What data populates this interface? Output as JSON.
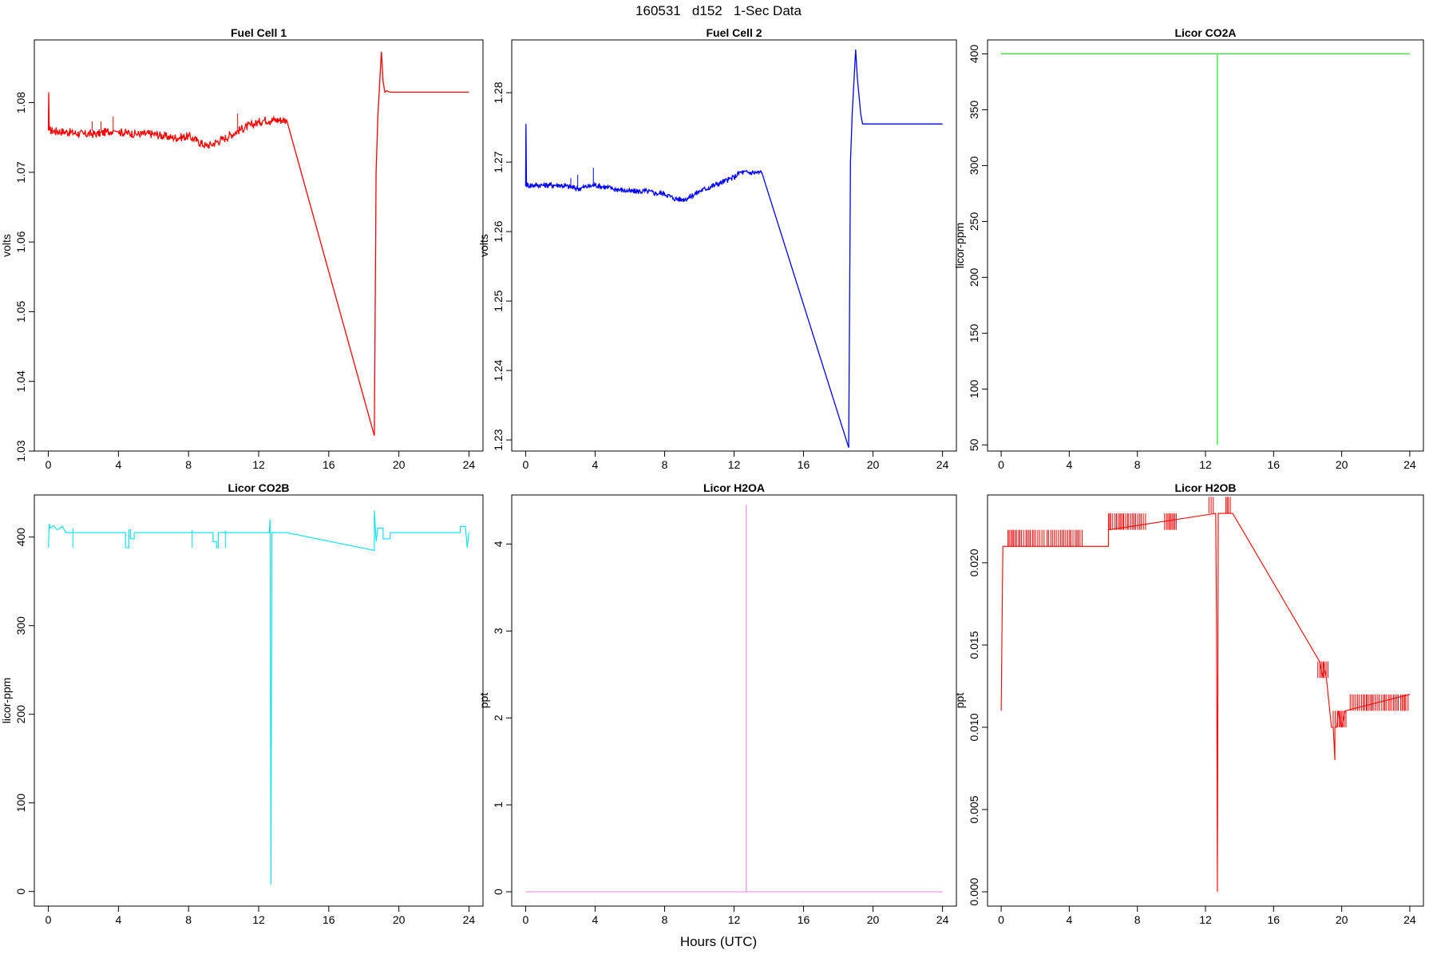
{
  "header": {
    "title": "160531   d152   1-Sec Data"
  },
  "x_axis_title": "Hours (UTC)",
  "chart_data": [
    {
      "type": "line",
      "title": "Fuel Cell 1",
      "ylabel": "volts",
      "color": "#ff0000",
      "xlim": [
        -0.8,
        24.8
      ],
      "ylim": [
        1.03,
        1.089
      ],
      "xticks": [
        0,
        4,
        8,
        12,
        16,
        20,
        24
      ],
      "yticks": [
        1.03,
        1.04,
        1.05,
        1.06,
        1.07,
        1.08
      ],
      "ytick_labels": [
        "1.03",
        "1.04",
        "1.05",
        "1.06",
        "1.07",
        "1.08"
      ],
      "noise": 0.0006,
      "x": [
        0,
        0.02,
        0.05,
        1,
        2,
        2.8,
        3.3,
        3.7,
        4,
        5,
        6,
        7,
        7.5,
        8,
        8.5,
        9,
        9.3,
        10,
        11,
        12,
        12.3,
        13.6,
        18.6,
        18.7,
        18.8,
        19.0,
        19.1,
        19.2,
        19.3,
        19.5,
        24
      ],
      "y": [
        1.076,
        1.0815,
        1.076,
        1.0758,
        1.0755,
        1.0755,
        1.0758,
        1.076,
        1.0758,
        1.0755,
        1.0755,
        1.075,
        1.075,
        1.0752,
        1.0745,
        1.0738,
        1.074,
        1.0748,
        1.0762,
        1.0772,
        1.0775,
        1.0775,
        1.0322,
        1.07,
        1.078,
        1.0873,
        1.083,
        1.0815,
        1.0817,
        1.0815,
        1.0815
      ],
      "spikes": [
        [
          2.5,
          1.0773
        ],
        [
          3.0,
          1.0773
        ],
        [
          3.7,
          1.078
        ],
        [
          10.8,
          1.0784
        ]
      ]
    },
    {
      "type": "line",
      "title": "Fuel Cell 2",
      "ylabel": "volts",
      "color": "#0000ff",
      "xlim": [
        -0.8,
        24.8
      ],
      "ylim": [
        1.2284,
        1.2876
      ],
      "xticks": [
        0,
        4,
        8,
        12,
        16,
        20,
        24
      ],
      "yticks": [
        1.23,
        1.24,
        1.25,
        1.26,
        1.27,
        1.28
      ],
      "ytick_labels": [
        "1.23",
        "1.24",
        "1.25",
        "1.26",
        "1.27",
        "1.28"
      ],
      "noise": 0.0004,
      "x": [
        0,
        0.02,
        0.05,
        1,
        2,
        3,
        4,
        5,
        6,
        7,
        7.5,
        8,
        8.5,
        9,
        9.3,
        10,
        11,
        12,
        12.3,
        13.6,
        18.6,
        18.7,
        18.8,
        19.0,
        19.1,
        19.3,
        19.4,
        24
      ],
      "y": [
        1.2665,
        1.2755,
        1.2667,
        1.2667,
        1.2667,
        1.2662,
        1.2667,
        1.2662,
        1.2658,
        1.2658,
        1.2655,
        1.2655,
        1.2648,
        1.2646,
        1.2648,
        1.2658,
        1.2668,
        1.2678,
        1.2685,
        1.2685,
        1.2289,
        1.27,
        1.277,
        1.2862,
        1.282,
        1.2768,
        1.2755,
        1.2755
      ],
      "spikes": [
        [
          2.6,
          1.2677
        ],
        [
          3.0,
          1.2682
        ],
        [
          3.9,
          1.2692
        ]
      ]
    },
    {
      "type": "line",
      "title": "Licor CO2A",
      "ylabel": "licor-ppm",
      "color": "#00ee00",
      "xlim": [
        -0.8,
        24.8
      ],
      "ylim": [
        44.5,
        412.5
      ],
      "xticks": [
        0,
        4,
        8,
        12,
        16,
        20,
        24
      ],
      "yticks": [
        50,
        100,
        150,
        200,
        250,
        300,
        350,
        400
      ],
      "ytick_labels": [
        "50",
        "100",
        "150",
        "200",
        "250",
        "300",
        "350",
        "400"
      ],
      "noise": 0,
      "x": [
        0,
        12.7,
        12.7,
        12.7,
        24
      ],
      "y": [
        400,
        400,
        50,
        400,
        400
      ],
      "spikes": []
    },
    {
      "type": "line",
      "title": "Licor CO2B",
      "ylabel": "licor-ppm",
      "color": "#00e5ee",
      "xlim": [
        -0.8,
        24.8
      ],
      "ylim": [
        -16.5,
        447.5
      ],
      "xticks": [
        0,
        4,
        8,
        12,
        16,
        20,
        24
      ],
      "yticks": [
        0,
        100,
        200,
        300,
        400
      ],
      "ytick_labels": [
        "0",
        "100",
        "200",
        "300",
        "400"
      ],
      "noise": 0,
      "x": [
        0,
        0.05,
        0.1,
        0.3,
        0.5,
        0.8,
        1.0,
        1.2,
        4.4,
        4.4,
        4.6,
        4.6,
        4.7,
        4.7,
        4.9,
        4.9,
        9.4,
        9.4,
        9.6,
        9.6,
        9.7,
        9.7,
        12.6,
        12.65,
        12.7,
        12.75,
        12.8,
        13.6,
        18.6,
        18.6,
        18.7,
        18.8,
        19.1,
        19.1,
        19.5,
        19.5,
        19.7,
        19.7,
        23.5,
        23.5,
        23.8,
        23.9,
        24
      ],
      "y": [
        388,
        415,
        410,
        413,
        408,
        412,
        405,
        405,
        405,
        388,
        388,
        408,
        408,
        398,
        398,
        405,
        405,
        395,
        395,
        388,
        388,
        405,
        405,
        420,
        8,
        405,
        405,
        405,
        385,
        430,
        395,
        410,
        410,
        398,
        398,
        405,
        405,
        405,
        405,
        412,
        412,
        388,
        405
      ],
      "spikes": [
        [
          1.4,
          410
        ],
        [
          8.2,
          408
        ],
        [
          10.1,
          407
        ]
      ]
    },
    {
      "type": "line",
      "title": "Licor H2OA",
      "ylabel": "ppt",
      "color": "#ee82ee",
      "xlim": [
        -0.8,
        24.8
      ],
      "ylim": [
        -0.165,
        4.565
      ],
      "xticks": [
        0,
        4,
        8,
        12,
        16,
        20,
        24
      ],
      "yticks": [
        0,
        1,
        2,
        3,
        4
      ],
      "ytick_labels": [
        "0",
        "1",
        "2",
        "3",
        "4"
      ],
      "noise": 0,
      "x": [
        0,
        12.7,
        12.7,
        12.7,
        24
      ],
      "y": [
        0,
        0,
        4.45,
        0,
        0
      ],
      "spikes": []
    },
    {
      "type": "line",
      "title": "Licor H2OB",
      "ylabel": "ppt",
      "color": "#ff0000",
      "xlim": [
        -0.8,
        24.8
      ],
      "ylim": [
        -0.00087,
        0.02412
      ],
      "xticks": [
        0,
        4,
        8,
        12,
        16,
        20,
        24
      ],
      "yticks": [
        0,
        0.005,
        0.01,
        0.015,
        0.02
      ],
      "ytick_labels": [
        "0.000",
        "0.005",
        "0.010",
        "0.015",
        "0.020"
      ],
      "noise": 0,
      "x": [
        0,
        0.1,
        0.2,
        6.3,
        6.3,
        12.6,
        12.65,
        12.7,
        12.75,
        12.8,
        13.6,
        18.7,
        18.9,
        18.9,
        19.1,
        19.2,
        19.3,
        19.4,
        19.5,
        19.6,
        19.6,
        19.7,
        19.8,
        20.0,
        20.2,
        24
      ],
      "y": [
        0.011,
        0.021,
        0.021,
        0.021,
        0.022,
        0.023,
        0.016,
        0,
        0.023,
        0.023,
        0.023,
        0.014,
        0.013,
        0.014,
        0.013,
        0.012,
        0.011,
        0.01,
        0.01,
        0.008,
        0.01,
        0.01,
        0.011,
        0.01,
        0.011,
        0.012
      ],
      "spikes": []
    }
  ]
}
